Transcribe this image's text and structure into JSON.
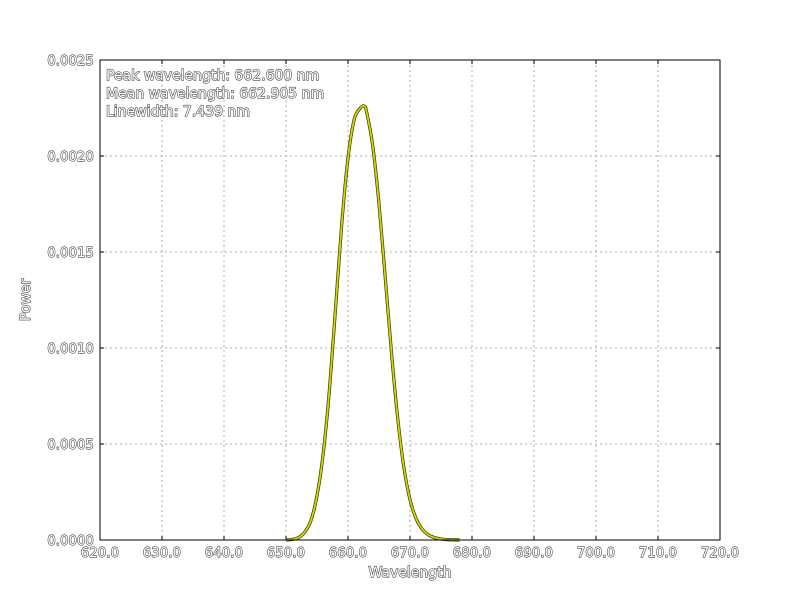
{
  "chart_data": {
    "type": "line",
    "xlabel": "Wavelength",
    "ylabel": "Power",
    "xlim": [
      620.0,
      720.0
    ],
    "ylim": [
      0.0,
      0.0025
    ],
    "xticks": [
      "620.0",
      "630.0",
      "640.0",
      "650.0",
      "660.0",
      "670.0",
      "680.0",
      "690.0",
      "700.0",
      "710.0",
      "720.0"
    ],
    "yticks": [
      "0.0000",
      "0.0005",
      "0.0010",
      "0.0015",
      "0.0020",
      "0.0025"
    ],
    "grid": true,
    "annotations": [
      "Peak wavelength: 662.600 nm",
      "Mean wavelength: 662.905 nm",
      "Linewidth: 7.439 nm"
    ],
    "series": [
      {
        "color": "#d4d400",
        "x": [
          650.0,
          651.0,
          652.0,
          653.0,
          654.0,
          655.0,
          656.0,
          657.0,
          658.0,
          659.0,
          660.0,
          661.0,
          662.0,
          662.6,
          663.0,
          664.0,
          665.0,
          666.0,
          667.0,
          668.0,
          669.0,
          670.0,
          671.0,
          672.0,
          673.0,
          674.0,
          675.0,
          676.0,
          677.0,
          678.0
        ],
        "y": [
          0.0,
          3e-06,
          1.2e-05,
          4e-05,
          0.0001,
          0.00023,
          0.00045,
          0.00078,
          0.00121,
          0.00165,
          0.00199,
          0.00219,
          0.00225,
          0.00226,
          0.00223,
          0.00205,
          0.00175,
          0.00137,
          0.00098,
          0.00064,
          0.00038,
          0.00021,
          0.00011,
          5.5e-05,
          2.6e-05,
          1.2e-05,
          5e-06,
          2e-06,
          8e-07,
          0.0
        ]
      }
    ]
  }
}
